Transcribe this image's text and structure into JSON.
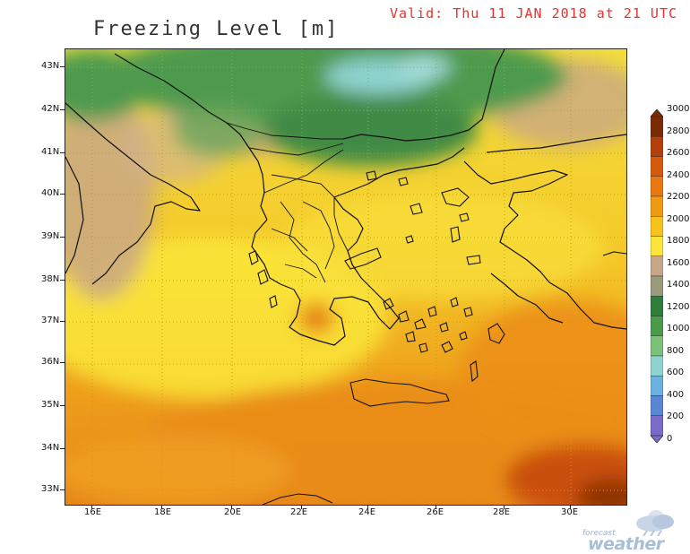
{
  "title": "Freezing Level [m]",
  "valid_label": "Valid: Thu 11 JAN 2018 at 21 UTC",
  "lat_labels": [
    "43N",
    "42N",
    "41N",
    "40N",
    "39N",
    "38N",
    "37N",
    "36N",
    "35N",
    "34N",
    "33N"
  ],
  "lon_labels": [
    "16E",
    "18E",
    "20E",
    "22E",
    "24E",
    "26E",
    "28E",
    "30E"
  ],
  "colorbar": {
    "labels": [
      "3000",
      "2800",
      "2600",
      "2400",
      "2200",
      "2000",
      "1800",
      "1600",
      "1400",
      "1200",
      "1000",
      "800",
      "600",
      "400",
      "200",
      "0"
    ],
    "colors": [
      "#7a2a05",
      "#b3400a",
      "#d65a0c",
      "#e8780f",
      "#f09a14",
      "#f6c21c",
      "#fae63a",
      "#c8a68a",
      "#9a9a7c",
      "#2f7e3c",
      "#4b9a4a",
      "#7cc07a",
      "#8fd3d0",
      "#6cb2e0",
      "#5b86d4",
      "#7a6bc8"
    ]
  },
  "logo": {
    "small": "forecast",
    "big": "weather",
    "icon": "cloud-sun-rain-icon"
  }
}
